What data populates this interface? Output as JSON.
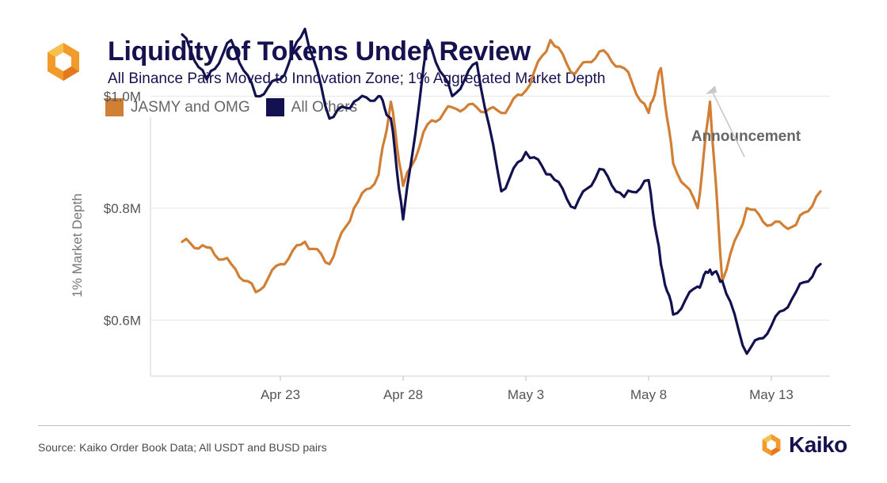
{
  "header": {
    "title": "Liquidity of Tokens Under Review",
    "subtitle": "All Binance Pairs Moved to Innovation Zone; 1% Aggregated Market Depth",
    "logo_icon": "kaiko-hexagon-logo"
  },
  "legend": {
    "items": [
      {
        "label": "JASMY and OMG",
        "color": "#d17f35"
      },
      {
        "label": "All Others",
        "color": "#13114f"
      }
    ]
  },
  "footer": {
    "source": "Source: Kaiko Order Book Data; All USDT and BUSD pairs",
    "brand": "Kaiko"
  },
  "colors": {
    "accent_orange": "#d17f35",
    "accent_orange_light": "#f5a623",
    "navy": "#13114f"
  },
  "chart_data": {
    "type": "line",
    "ylabel": "1% Market Depth",
    "xlabel": "",
    "x_ticks": [
      "Apr 23",
      "Apr 28",
      "May 3",
      "May 8",
      "May 13"
    ],
    "y_ticks": [
      "$0.6M",
      "$0.8M",
      "$1.0M"
    ],
    "y_tick_values": [
      0.6,
      0.8,
      1.0
    ],
    "ylim": [
      0.5,
      1.2
    ],
    "x_range": [
      "2022-04-19",
      "2022-05-15"
    ],
    "grid": "horizontal",
    "legend_position": "top-left",
    "annotation": {
      "text": "Announcement",
      "x": "2022-05-10",
      "y": 0.995
    },
    "series": [
      {
        "name": "JASMY and OMG",
        "color": "#d17f35",
        "x": [
          "2022-04-19",
          "2022-04-20",
          "2022-04-21",
          "2022-04-22",
          "2022-04-23",
          "2022-04-24",
          "2022-04-25",
          "2022-04-26",
          "2022-04-27",
          "2022-04-27 12:00",
          "2022-04-28",
          "2022-04-29",
          "2022-04-30",
          "2022-05-01",
          "2022-05-02",
          "2022-05-03",
          "2022-05-04",
          "2022-05-05",
          "2022-05-06",
          "2022-05-07",
          "2022-05-08",
          "2022-05-08 12:00",
          "2022-05-09",
          "2022-05-10",
          "2022-05-10 12:00",
          "2022-05-11",
          "2022-05-12",
          "2022-05-13",
          "2022-05-14",
          "2022-05-15"
        ],
        "values": [
          0.74,
          0.73,
          0.7,
          0.65,
          0.7,
          0.74,
          0.7,
          0.8,
          0.86,
          0.99,
          0.84,
          0.95,
          0.98,
          0.98,
          0.97,
          1.01,
          1.1,
          1.04,
          1.08,
          1.05,
          0.97,
          1.05,
          0.88,
          0.8,
          0.99,
          0.67,
          0.8,
          0.77,
          0.77,
          0.83
        ]
      },
      {
        "name": "All Others",
        "color": "#13114f",
        "x": [
          "2022-04-19",
          "2022-04-20",
          "2022-04-21",
          "2022-04-22",
          "2022-04-23",
          "2022-04-24",
          "2022-04-25",
          "2022-04-26",
          "2022-04-27",
          "2022-04-27 12:00",
          "2022-04-28",
          "2022-04-29",
          "2022-04-30",
          "2022-05-01",
          "2022-05-02",
          "2022-05-03",
          "2022-05-04",
          "2022-05-05",
          "2022-05-06",
          "2022-05-07",
          "2022-05-08",
          "2022-05-08 12:00",
          "2022-05-09",
          "2022-05-10",
          "2022-05-10 12:00",
          "2022-05-11",
          "2022-05-12",
          "2022-05-13",
          "2022-05-14",
          "2022-05-15"
        ],
        "values": [
          1.11,
          1.03,
          1.1,
          1.0,
          1.03,
          1.12,
          0.96,
          0.99,
          1.0,
          0.96,
          0.78,
          1.1,
          1.0,
          1.06,
          0.83,
          0.9,
          0.86,
          0.8,
          0.87,
          0.82,
          0.85,
          0.7,
          0.61,
          0.66,
          0.69,
          0.67,
          0.54,
          0.59,
          0.65,
          0.7
        ]
      }
    ]
  }
}
